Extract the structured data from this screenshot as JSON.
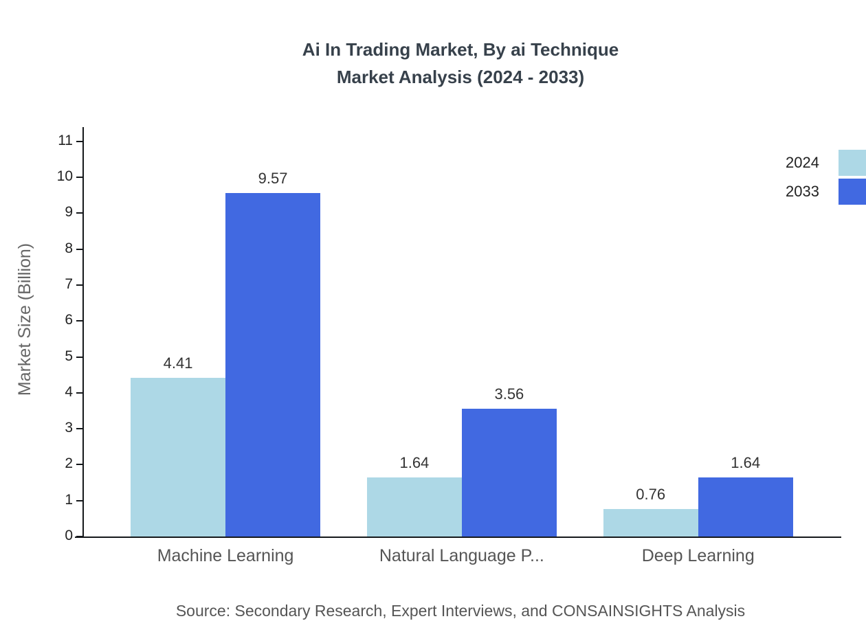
{
  "title": {
    "line1": "Ai In Trading Market, By ai Technique",
    "line2": "Market Analysis (2024 - 2033)"
  },
  "ylabel": "Market Size (Billion)",
  "source": "Source: Secondary Research, Expert Interviews, and CONSAINSIGHTS Analysis",
  "colors": {
    "series_2024": "#add8e6",
    "series_2033": "#4169e1",
    "axis": "#14171a",
    "title_text": "#37414b",
    "muted_text": "#555555"
  },
  "legend": [
    {
      "label": "2024",
      "color": "#add8e6"
    },
    {
      "label": "2033",
      "color": "#4169e1"
    }
  ],
  "chart_data": {
    "type": "bar",
    "title": "Ai In Trading Market, By ai Technique Market Analysis (2024 - 2033)",
    "categories": [
      "Machine Learning",
      "Natural Language P...",
      "Deep Learning"
    ],
    "series": [
      {
        "name": "2024",
        "color": "#add8e6",
        "values": [
          4.41,
          1.64,
          0.76
        ]
      },
      {
        "name": "2033",
        "color": "#4169e1",
        "values": [
          9.57,
          3.56,
          1.64
        ]
      }
    ],
    "xlabel": "",
    "ylabel": "Market Size (Billion)",
    "ylim": [
      0,
      11
    ],
    "yticks": [
      0,
      1,
      2,
      3,
      4,
      5,
      6,
      7,
      8,
      9,
      10,
      11
    ],
    "grid": false,
    "legend_position": "top-right",
    "value_labels": true
  }
}
